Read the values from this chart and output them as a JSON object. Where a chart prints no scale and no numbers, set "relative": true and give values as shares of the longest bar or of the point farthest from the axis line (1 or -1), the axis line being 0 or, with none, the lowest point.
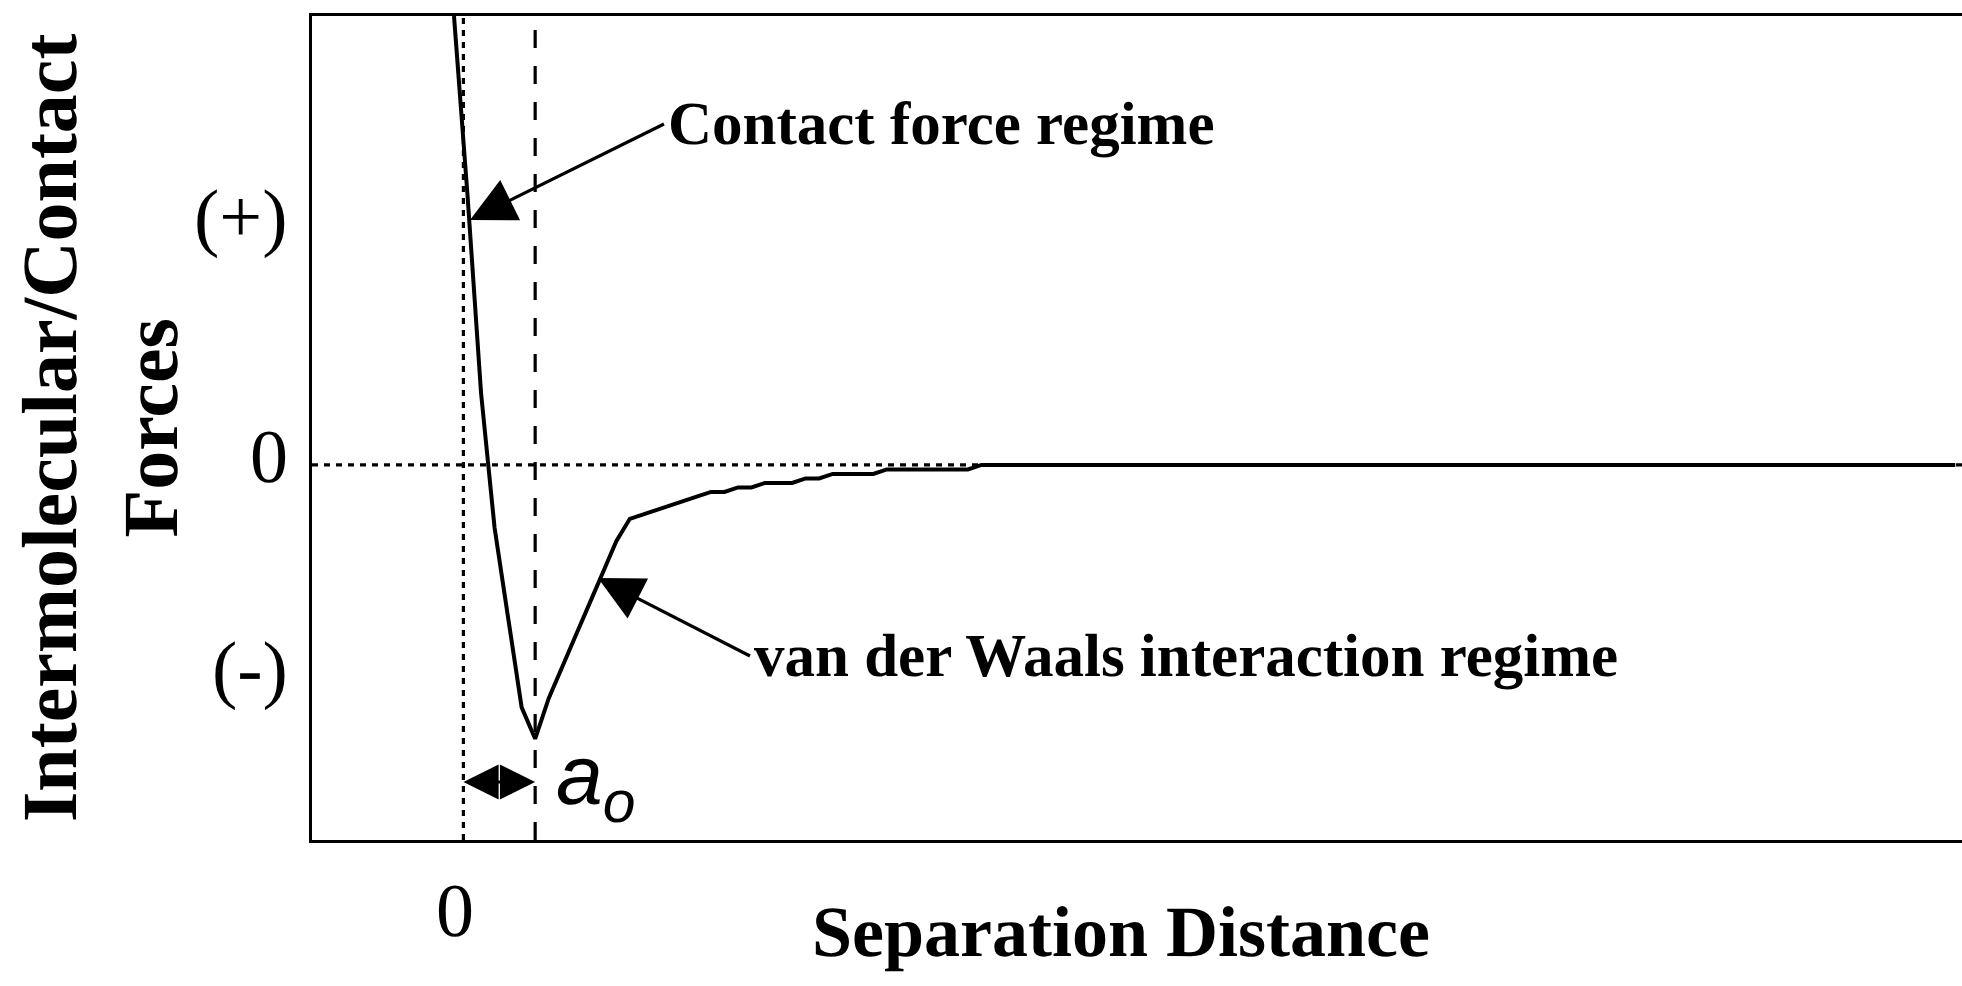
{
  "chart_data": {
    "type": "line",
    "relative": true,
    "xlabel": "Separation Distance",
    "ylabel": "Intermolecular/Contact Forces",
    "categories": [
      null,
      null,
      null,
      null,
      null,
      null,
      null,
      null,
      null,
      null,
      null,
      null,
      null,
      null,
      null,
      null,
      null,
      null,
      null,
      null,
      null,
      null,
      null,
      null,
      null,
      null,
      null,
      null,
      null,
      null,
      null,
      null,
      null,
      null,
      null,
      null,
      null,
      null,
      null,
      null,
      null,
      null,
      null,
      null,
      null,
      null,
      null,
      null,
      null,
      null,
      null,
      null,
      null,
      null,
      null,
      null,
      null,
      null,
      null,
      null,
      null,
      null,
      null,
      null,
      null,
      null,
      null,
      null,
      null,
      null,
      null,
      null,
      null,
      null,
      null,
      null,
      null,
      null,
      null,
      null,
      null,
      null,
      null,
      null,
      null,
      null,
      null,
      null,
      null,
      null,
      null,
      null,
      null,
      null,
      null,
      null,
      null,
      null,
      null,
      null,
      null,
      null,
      null,
      null,
      null,
      null,
      null,
      null,
      null,
      null,
      null,
      null,
      null,
      null,
      null,
      null,
      null,
      null,
      null,
      null,
      null,
      null
    ],
    "values": [
      null,
      null,
      null,
      null,
      null,
      null,
      null,
      null,
      null,
      null,
      1,
      0.6,
      0.16,
      -0.14,
      -0.34,
      -0.54,
      -0.61,
      -0.52,
      -0.45,
      -0.38,
      -0.31,
      -0.24,
      -0.17,
      -0.12,
      -0.11,
      -0.1,
      -0.09,
      -0.08,
      -0.07,
      -0.06,
      -0.06,
      -0.05,
      -0.05,
      -0.04,
      -0.04,
      -0.04,
      -0.03,
      -0.03,
      -0.02,
      -0.02,
      -0.02,
      -0.02,
      -0.01,
      -0.01,
      -0.01,
      -0.01,
      -0.01,
      -0.01,
      -0.01,
      0,
      0,
      0,
      0,
      0,
      0,
      0,
      0,
      0,
      0,
      0,
      0,
      0,
      0,
      0,
      0,
      0,
      0,
      0,
      0,
      0,
      0,
      0,
      0,
      0,
      0,
      0,
      0,
      0,
      0,
      0,
      0,
      0,
      0,
      0,
      0,
      0,
      0,
      0,
      0,
      0,
      0,
      0,
      0,
      0,
      0,
      0,
      0,
      0,
      0,
      0,
      0,
      0,
      0,
      0,
      0,
      0,
      0,
      0,
      0,
      0,
      0,
      0,
      0,
      0,
      0,
      0,
      0,
      0,
      0,
      0,
      0,
      0
    ],
    "color": "#000000",
    "ref_lines": [
      {
        "axis": "y",
        "value": 0,
        "label": "0",
        "line_style": "dotted",
        "color": "#000000"
      }
    ],
    "annotations": [
      "Contact force regime",
      "van der Waals interaction regime",
      "(+)",
      "(-)",
      "0",
      "a$_{o}$"
    ]
  }
}
